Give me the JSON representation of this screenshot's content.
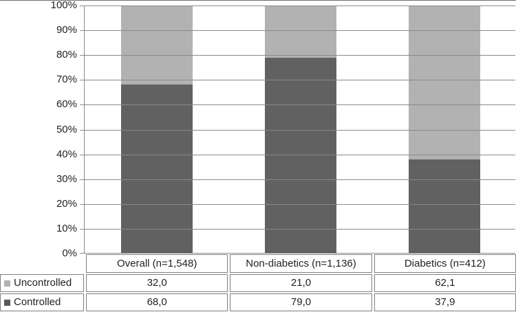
{
  "chart_data": {
    "type": "bar",
    "subtype": "stacked-100-percent",
    "title": "",
    "xlabel": "",
    "ylabel": "",
    "categories": [
      "Overall (n=1,548)",
      "Non-diabetics (n=1,136)",
      "Diabetics (n=412)"
    ],
    "series": [
      {
        "name": "Uncontrolled",
        "color": "#b2b2b2",
        "values": [
          32.0,
          21.0,
          62.1
        ]
      },
      {
        "name": "Controlled",
        "color": "#616161",
        "values": [
          68.0,
          79.0,
          37.9
        ]
      }
    ],
    "y_ticks": [
      "100%",
      "90%",
      "80%",
      "70%",
      "60%",
      "50%",
      "40%",
      "30%",
      "20%",
      "10%",
      "0%"
    ],
    "ylim": [
      0,
      100
    ],
    "grid": true,
    "legend_position": "data-table-left"
  },
  "table": {
    "category_headers": [
      "Overall (n=1,548)",
      "Non-diabetics (n=1,136)",
      "Diabetics (n=412)"
    ],
    "rows": [
      {
        "legend_label": "Uncontrolled",
        "swatch_color": "#b2b2b2",
        "values": [
          "32,0",
          "21,0",
          "62,1"
        ]
      },
      {
        "legend_label": "Controlled",
        "swatch_color": "#595959",
        "values": [
          "68,0",
          "79,0",
          "37,9"
        ]
      }
    ]
  },
  "colors": {
    "uncontrolled_fill": "#b2b2b2",
    "controlled_fill": "#616161",
    "gridline": "#898989",
    "table_border": "#7f7f7f",
    "text": "#1f1f1f"
  }
}
